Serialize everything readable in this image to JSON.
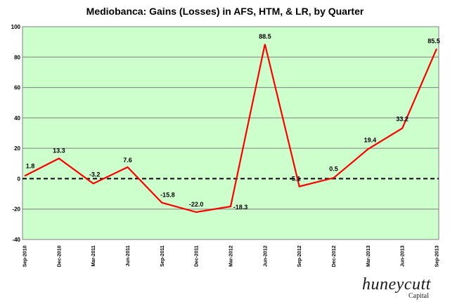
{
  "chart_data": {
    "type": "line",
    "title": "Mediobanca:  Gains (Losses) in AFS, HTM, & LR, by Quarter",
    "categories": [
      "Sep-2010",
      "Dec-2010",
      "Mar-2011",
      "Jun-2011",
      "Sep-2011",
      "Dec-2011",
      "Mar-2012",
      "Jun-2012",
      "Sep-2012",
      "Dec-2012",
      "Mar-2013",
      "Jun-2013",
      "Sep-2013"
    ],
    "series": [
      {
        "values": [
          1.8,
          13.3,
          -3.2,
          7.6,
          -15.8,
          -22.0,
          -18.3,
          88.5,
          -5.1,
          0.5,
          19.4,
          33.2,
          85.5
        ],
        "labels": [
          "1.8",
          "13.3",
          "-3.2",
          "7.6",
          "-15.8",
          "-22.0",
          "-18.3",
          "88.5",
          "-5.1",
          "0.5",
          "19.4",
          "33.2",
          "85.5"
        ],
        "color": "#ff0000"
      }
    ],
    "ylim": [
      -40,
      100
    ],
    "yticks": [
      "-40",
      "-20",
      "0",
      "20",
      "40",
      "60",
      "80",
      "100"
    ],
    "grid": true,
    "zero_line": "dashed",
    "plot_background": "#ccffcc",
    "grid_color": "#808080"
  },
  "branding": {
    "logo_main": "huneycutt",
    "logo_sub": "Capital"
  }
}
